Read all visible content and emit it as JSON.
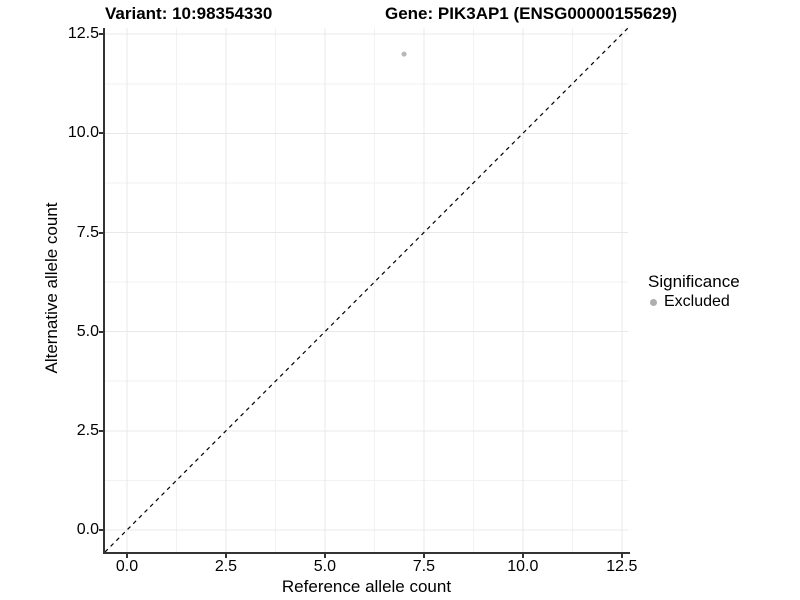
{
  "chart_data": {
    "type": "scatter",
    "title": "Variant: 10:98354330        Gene: PIK3AP1 (ENSG00000155629)",
    "title_parts": {
      "left": "Variant: 10:98354330",
      "right": "Gene: PIK3AP1 (ENSG00000155629)"
    },
    "xlabel": "Reference allele count",
    "ylabel": "Alternative allele count",
    "xlim": [
      -0.556,
      12.657
    ],
    "ylim": [
      -0.556,
      12.657
    ],
    "x_ticks": {
      "values": [
        0,
        2.5,
        5,
        7.5,
        10,
        12.5
      ],
      "labels": [
        "0.0",
        "2.5",
        "5.0",
        "7.5",
        "10.0",
        "12.5"
      ]
    },
    "y_ticks": {
      "values": [
        0,
        2.5,
        5,
        7.5,
        10,
        12.5
      ],
      "labels": [
        "0.0",
        "2.5",
        "5.0",
        "7.5",
        "10.0",
        "12.5"
      ]
    },
    "grid": {
      "major": true,
      "minor": true
    },
    "reference_line": {
      "kind": "identity y=x",
      "style": "dashed",
      "color": "#000000"
    },
    "series": [
      {
        "name": "Excluded",
        "color": "#b9b9b9",
        "points": [
          {
            "x": 7,
            "y": 12
          }
        ]
      }
    ],
    "legend": {
      "title": "Significance",
      "position": "right",
      "items": [
        {
          "label": "Excluded",
          "color": "#aeaeae"
        }
      ]
    },
    "colors": {
      "background": "#ffffff",
      "axis_line": "#333333",
      "grid_major": "#e8e8e8",
      "grid_minor": "#f2f2f2",
      "point": "#b9b9b9",
      "text": "#000000"
    }
  }
}
